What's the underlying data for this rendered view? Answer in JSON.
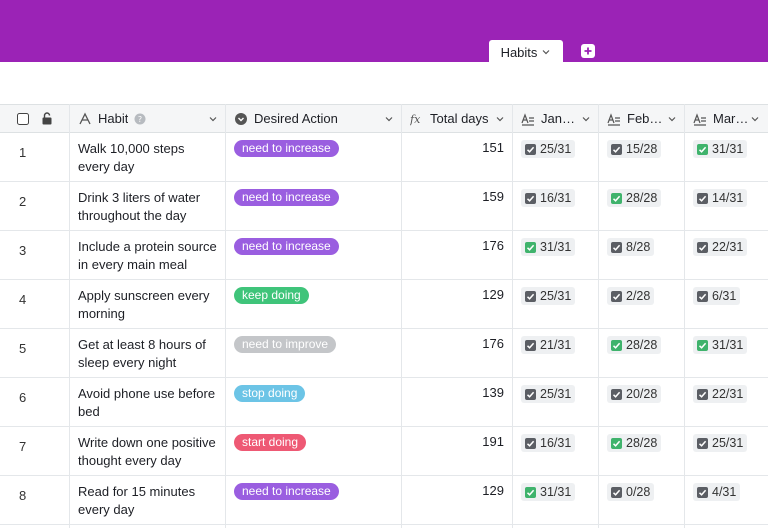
{
  "tabs": {
    "active_label": "Habits"
  },
  "colors": {
    "header_bg": "#9b23b6",
    "pill": {
      "need to increase": "#9a5ee0",
      "keep doing": "#3fc47a",
      "need to improve": "#c4c6c9",
      "stop doing": "#6cc4e6",
      "start doing": "#ee5974"
    },
    "check_done": "#3fb36c",
    "check_partial": "#5b5e64"
  },
  "columns": {
    "habit": "Habit",
    "action": "Desired Action",
    "total": "Total days",
    "jan": "Jan…",
    "feb": "Feb…",
    "mar": "Mar…"
  },
  "rows": [
    {
      "index": "1",
      "habit": "Walk 10,000 steps every day",
      "action": "need to increase",
      "total": "151",
      "jan": "25/31",
      "jan_done": false,
      "feb": "15/28",
      "feb_done": false,
      "mar": "31/31",
      "mar_done": true
    },
    {
      "index": "2",
      "habit": "Drink 3 liters of water throughout the day",
      "action": "need to increase",
      "total": "159",
      "jan": "16/31",
      "jan_done": false,
      "feb": "28/28",
      "feb_done": true,
      "mar": "14/31",
      "mar_done": false
    },
    {
      "index": "3",
      "habit": "Include a protein source in every main meal",
      "action": "need to increase",
      "total": "176",
      "jan": "31/31",
      "jan_done": true,
      "feb": "8/28",
      "feb_done": false,
      "mar": "22/31",
      "mar_done": false
    },
    {
      "index": "4",
      "habit": "Apply sunscreen every morning",
      "action": "keep doing",
      "total": "129",
      "jan": "25/31",
      "jan_done": false,
      "feb": "2/28",
      "feb_done": false,
      "mar": "6/31",
      "mar_done": false
    },
    {
      "index": "5",
      "habit": "Get at least 8 hours of sleep every night",
      "action": "need to improve",
      "total": "176",
      "jan": "21/31",
      "jan_done": false,
      "feb": "28/28",
      "feb_done": true,
      "mar": "31/31",
      "mar_done": true
    },
    {
      "index": "6",
      "habit": "Avoid phone use before bed",
      "action": "stop doing",
      "total": "139",
      "jan": "25/31",
      "jan_done": false,
      "feb": "20/28",
      "feb_done": false,
      "mar": "22/31",
      "mar_done": false
    },
    {
      "index": "7",
      "habit": "Write down one positive thought every day",
      "action": "start doing",
      "total": "191",
      "jan": "16/31",
      "jan_done": false,
      "feb": "28/28",
      "feb_done": true,
      "mar": "25/31",
      "mar_done": false
    },
    {
      "index": "8",
      "habit": "Read for 15 minutes every day",
      "action": "need to increase",
      "total": "129",
      "jan": "31/31",
      "jan_done": true,
      "feb": "0/28",
      "feb_done": false,
      "mar": "4/31",
      "mar_done": false
    }
  ]
}
